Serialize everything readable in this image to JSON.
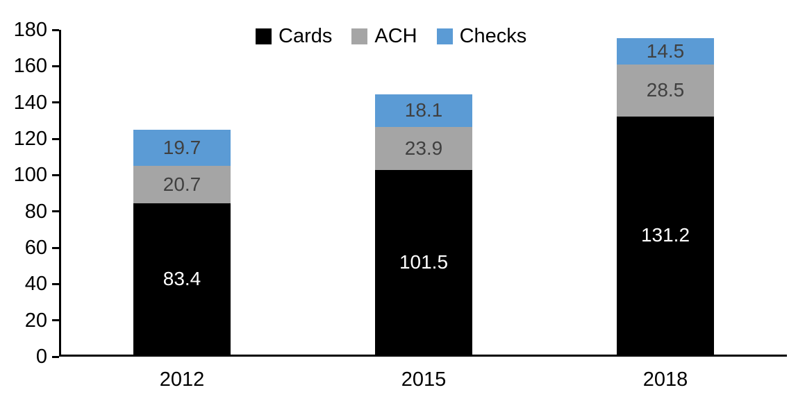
{
  "chart_data": {
    "type": "bar",
    "subtype": "stacked-column",
    "title": "",
    "xlabel": "",
    "ylabel": "",
    "categories": [
      "2012",
      "2015",
      "2018"
    ],
    "series": [
      {
        "name": "Cards",
        "color": "#000000",
        "label_color": "#ffffff",
        "values": [
          83.4,
          101.5,
          131.2
        ]
      },
      {
        "name": "ACH",
        "color": "#A5A5A5",
        "label_color": "#404040",
        "values": [
          20.7,
          23.9,
          28.5
        ]
      },
      {
        "name": "Checks",
        "color": "#5B9BD5",
        "label_color": "#404040",
        "values": [
          19.7,
          18.1,
          14.5
        ]
      }
    ],
    "totals": [
      123.8,
      143.5,
      174.2
    ],
    "ylim": [
      0,
      180
    ],
    "y_ticks": [
      0,
      20,
      40,
      60,
      80,
      100,
      120,
      140,
      160,
      180
    ],
    "grid": false,
    "legend_position": "top",
    "axis_color": "#000000",
    "background_color": "#ffffff"
  }
}
